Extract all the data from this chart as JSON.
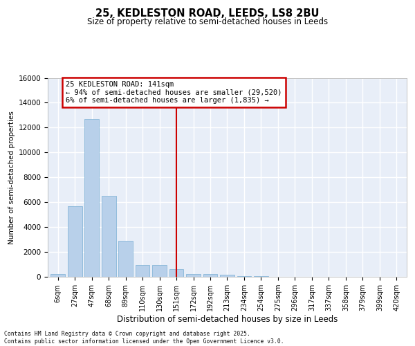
{
  "title_line1": "25, KEDLESTON ROAD, LEEDS, LS8 2BU",
  "title_line2": "Size of property relative to semi-detached houses in Leeds",
  "xlabel": "Distribution of semi-detached houses by size in Leeds",
  "ylabel": "Number of semi-detached properties",
  "categories": [
    "6sqm",
    "27sqm",
    "47sqm",
    "68sqm",
    "89sqm",
    "110sqm",
    "130sqm",
    "151sqm",
    "172sqm",
    "192sqm",
    "213sqm",
    "234sqm",
    "254sqm",
    "275sqm",
    "296sqm",
    "317sqm",
    "337sqm",
    "358sqm",
    "379sqm",
    "399sqm",
    "420sqm"
  ],
  "bar_values": [
    200,
    5700,
    12700,
    6500,
    2900,
    950,
    950,
    600,
    250,
    200,
    150,
    50,
    50,
    20,
    10,
    10,
    5,
    5,
    2,
    2,
    2
  ],
  "bar_color": "#b8d0ea",
  "bar_edge_color": "#7aafd4",
  "vline_x_index": 7,
  "vline_color": "#cc0000",
  "annotation_text": "25 KEDLESTON ROAD: 141sqm\n← 94% of semi-detached houses are smaller (29,520)\n6% of semi-detached houses are larger (1,835) →",
  "annotation_box_color": "#cc0000",
  "ylim": [
    0,
    16000
  ],
  "yticks": [
    0,
    2000,
    4000,
    6000,
    8000,
    10000,
    12000,
    14000,
    16000
  ],
  "bg_color": "#e8eef8",
  "grid_color": "#ffffff",
  "footer_line1": "Contains HM Land Registry data © Crown copyright and database right 2025.",
  "footer_line2": "Contains public sector information licensed under the Open Government Licence v3.0."
}
